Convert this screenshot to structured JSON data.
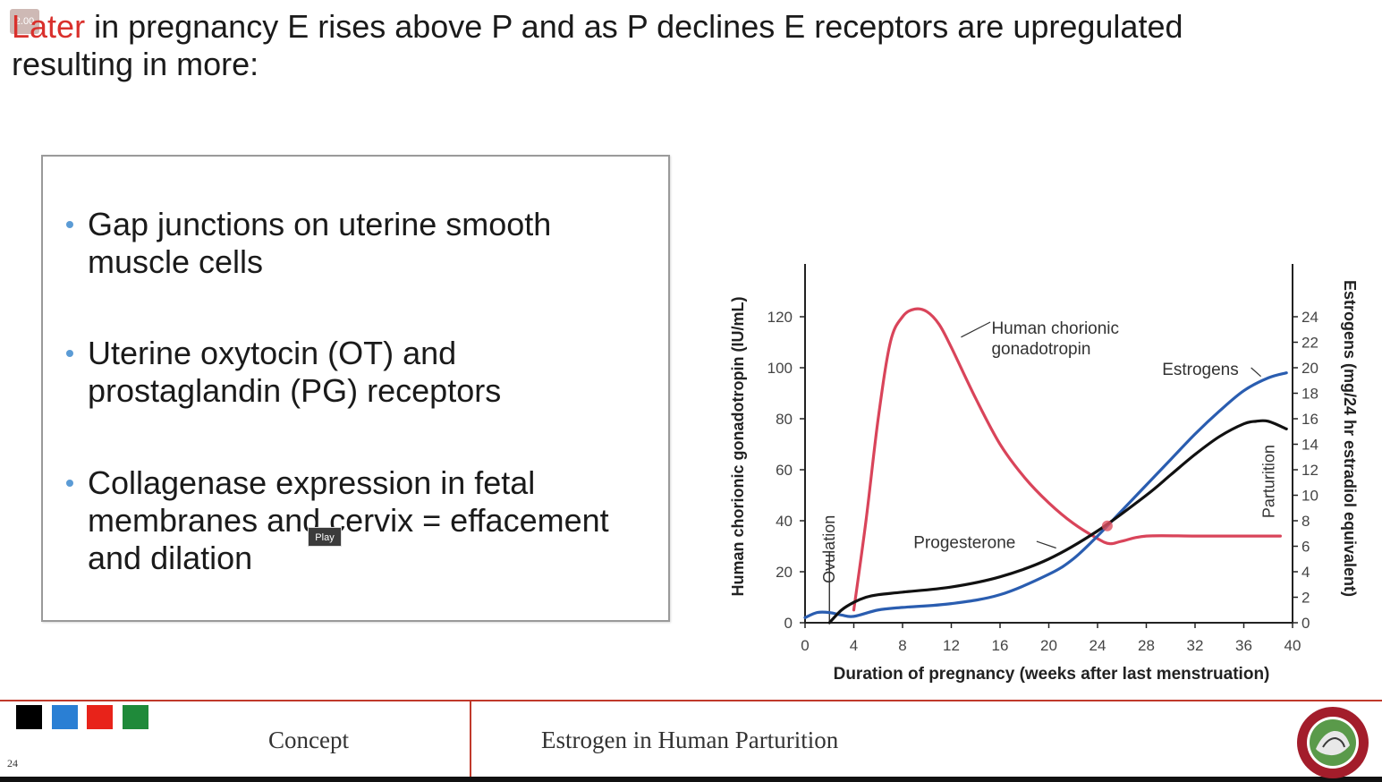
{
  "overlay": {
    "speed": "2.00"
  },
  "heading": {
    "accent_word": "Later",
    "rest_line1": " in pregnancy E rises above P and as P declines E receptors are upregulated",
    "line2": "resulting in more:"
  },
  "bullets": [
    {
      "line1": "Gap junctions on uterine smooth",
      "line2": "muscle cells",
      "line3": ""
    },
    {
      "line1": "Uterine oxytocin (OT) and",
      "line2": "prostaglandin (PG) receptors",
      "line3": ""
    },
    {
      "line1": "Collagenase expression in fetal",
      "line2": "membranes and cervix = effacement",
      "line3": "and dilation"
    }
  ],
  "player": {
    "play_tooltip": "Play"
  },
  "colors": {
    "hcg": "#d9445a",
    "estrogens": "#2a5db0",
    "progesterone": "#111111",
    "accent_red": "#d9302c",
    "footer_red": "#c0392b",
    "bullet_blue": "#5b9bd5"
  },
  "swatches": [
    "#000000",
    "#2a7fd4",
    "#e8231a",
    "#1f8a3a"
  ],
  "footer": {
    "left": "Concept",
    "center": "Estrogen in Human Parturition",
    "page": "24"
  },
  "chart_data": {
    "type": "line",
    "xlabel": "Duration of pregnancy (weeks after last menstruation)",
    "ylabel_left": "Human chorionic gonadotropin (IU/mL)",
    "ylabel_right": "Estrogens (mg/24 hr estradiol equivalent)",
    "xlim": [
      0,
      40
    ],
    "ylim_left": [
      0,
      120
    ],
    "ylim_right": [
      0,
      24
    ],
    "x_ticks": [
      0,
      4,
      8,
      12,
      16,
      20,
      24,
      28,
      32,
      36,
      40
    ],
    "y_left_ticks": [
      0,
      20,
      40,
      60,
      80,
      100,
      120
    ],
    "y_right_ticks": [
      0,
      2,
      4,
      6,
      8,
      10,
      12,
      14,
      16,
      18,
      20,
      22,
      24
    ],
    "series": [
      {
        "name": "Human chorionic gonadotropin",
        "axis": "left",
        "x": [
          4,
          5,
          6,
          7,
          8,
          9,
          10,
          11,
          12,
          14,
          16,
          18,
          20,
          22,
          24,
          25,
          26,
          28,
          32,
          36,
          39
        ],
        "y": [
          5,
          40,
          80,
          110,
          120,
          123,
          122,
          117,
          108,
          88,
          70,
          57,
          47,
          39,
          33,
          31,
          32,
          34,
          34,
          34,
          34
        ]
      },
      {
        "name": "Estrogens",
        "axis": "right",
        "x": [
          0,
          1,
          2,
          3,
          4,
          6,
          8,
          12,
          16,
          20,
          22,
          24,
          26,
          28,
          30,
          32,
          34,
          36,
          38,
          39.5
        ],
        "y": [
          0.4,
          0.8,
          0.8,
          0.6,
          0.5,
          1.0,
          1.2,
          1.5,
          2.2,
          3.8,
          5.0,
          6.8,
          8.8,
          10.8,
          12.8,
          14.8,
          16.6,
          18.2,
          19.2,
          19.6
        ]
      },
      {
        "name": "Progesterone",
        "axis": "left",
        "x": [
          2,
          3,
          4,
          5,
          6,
          8,
          12,
          16,
          20,
          24,
          28,
          30,
          32,
          34,
          36,
          37,
          38,
          39.5
        ],
        "y": [
          0,
          5,
          8,
          10,
          11,
          12,
          14,
          18,
          25,
          36,
          50,
          58,
          66,
          73,
          78,
          79,
          79,
          76
        ]
      }
    ],
    "annotations": [
      {
        "text": "Human chorionic",
        "text2": "gonadotropin"
      },
      {
        "text": "Estrogens"
      },
      {
        "text": "Progesterone"
      },
      {
        "text": "Ovulation",
        "x": 2
      },
      {
        "text": "Parturition",
        "x": 38.5
      }
    ]
  }
}
